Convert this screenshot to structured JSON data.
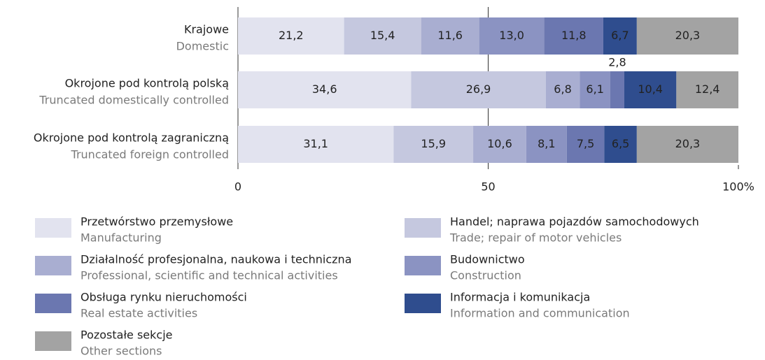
{
  "chart_data": {
    "type": "stacked-barh",
    "categories": [
      "Krajowe",
      "Okrojone pod kontrolą polską",
      "Okrojone pod kontrolą zagraniczną"
    ],
    "category_subtitles": [
      "Domestic",
      "Truncated domestically controlled",
      "Truncated foreign controlled"
    ],
    "series": [
      {
        "name": "Przetwórstwo przemysłowe",
        "subtitle": "Manufacturing",
        "color": "#e2e3ef",
        "values": [
          21.2,
          34.6,
          31.1
        ],
        "value_labels": [
          "21,2",
          "34,6",
          "31,1"
        ]
      },
      {
        "name": "Handel; naprawa pojazdów samochodowych",
        "subtitle": "Trade; repair of motor vehicles",
        "color": "#c5c8df",
        "values": [
          15.4,
          26.9,
          15.9
        ],
        "value_labels": [
          "15,4",
          "26,9",
          "15,9"
        ]
      },
      {
        "name": "Działalność profesjonalna, naukowa i techniczna",
        "subtitle": "Professional, scientific and  technical activities",
        "color": "#a9aed1",
        "values": [
          11.6,
          6.8,
          10.6
        ],
        "value_labels": [
          "11,6",
          "6,8",
          "10,6"
        ]
      },
      {
        "name": "Budownictwo",
        "subtitle": "Construction",
        "color": "#8b93c2",
        "values": [
          13.0,
          6.1,
          8.1
        ],
        "value_labels": [
          "13,0",
          "6,1",
          "8,1"
        ]
      },
      {
        "name": "Obsługa rynku nieruchomości",
        "subtitle": "Real estate activities",
        "color": "#6b77b0",
        "values": [
          11.8,
          2.8,
          7.5
        ],
        "value_labels": [
          "11,8",
          "2,8",
          "7,5"
        ]
      },
      {
        "name": "Informacja i komunikacja",
        "subtitle": "Information and communication",
        "color": "#2f4d8e",
        "values": [
          6.7,
          10.4,
          6.5
        ],
        "value_labels": [
          "6,7",
          "10,4",
          "6,5"
        ]
      },
      {
        "name": "Pozostałe sekcje",
        "subtitle": "Other sections",
        "color": "#a3a3a3",
        "values": [
          20.3,
          12.4,
          20.3
        ],
        "value_labels": [
          "20,3",
          "12,4",
          "20,3"
        ]
      }
    ],
    "xlim": [
      0,
      100
    ],
    "xticks": [
      0,
      50,
      {
        "value": 100,
        "label": "100%"
      }
    ]
  }
}
